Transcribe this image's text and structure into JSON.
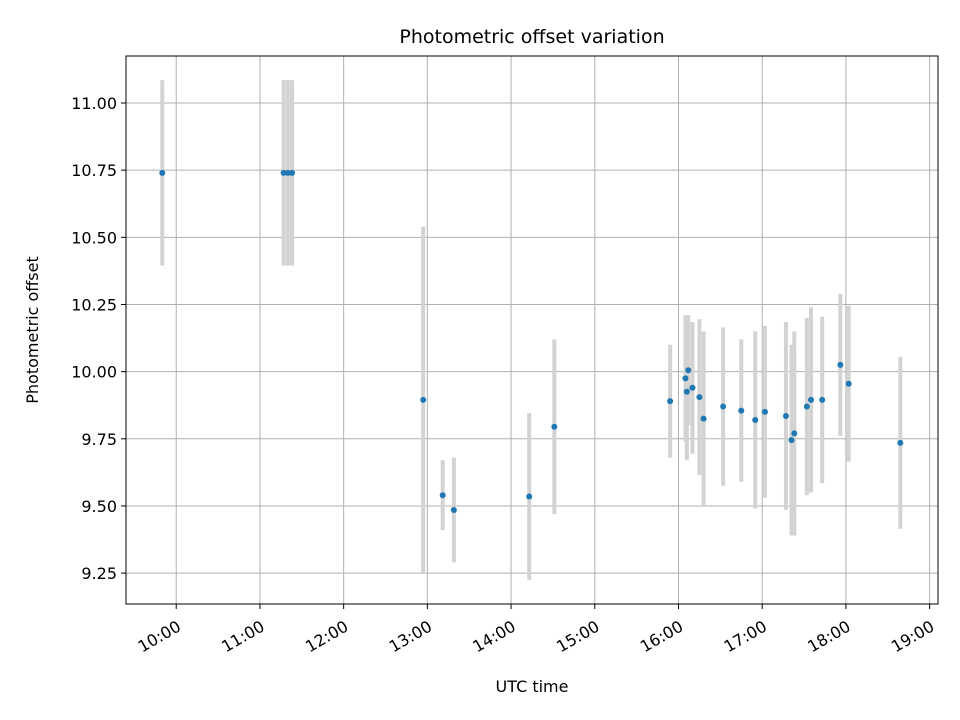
{
  "chart_data": {
    "type": "scatter",
    "title": "Photometric offset variation",
    "xlabel": "UTC time",
    "ylabel": "Photometric offset",
    "grid": true,
    "xlim_hours": [
      9.4,
      19.1
    ],
    "ylim": [
      9.135,
      11.175
    ],
    "x_tick_labels": [
      "10:00",
      "11:00",
      "12:00",
      "13:00",
      "14:00",
      "15:00",
      "16:00",
      "17:00",
      "18:00",
      "19:00"
    ],
    "y_tick_labels": [
      "9.25",
      "9.50",
      "9.75",
      "10.00",
      "10.25",
      "10.50",
      "10.75",
      "11.00"
    ],
    "colors": {
      "point": "#1f77b4",
      "errorbar": "#d3d3d3",
      "grid": "#b0b0b0"
    },
    "points": [
      {
        "x": "09:50",
        "y": 10.74,
        "err": 0.345
      },
      {
        "x": "11:17",
        "y": 10.74,
        "err": 0.345
      },
      {
        "x": "11:20",
        "y": 10.74,
        "err": 0.345
      },
      {
        "x": "11:23",
        "y": 10.74,
        "err": 0.345
      },
      {
        "x": "12:57",
        "y": 9.895,
        "err": 0.645
      },
      {
        "x": "13:11",
        "y": 9.54,
        "err": 0.13
      },
      {
        "x": "13:19",
        "y": 9.485,
        "err": 0.195
      },
      {
        "x": "14:13",
        "y": 9.535,
        "err": 0.31
      },
      {
        "x": "14:31",
        "y": 9.795,
        "err": 0.325
      },
      {
        "x": "15:54",
        "y": 9.89,
        "err": 0.21
      },
      {
        "x": "16:05",
        "y": 9.975,
        "err": 0.235
      },
      {
        "x": "16:06",
        "y": 9.925,
        "err": 0.255
      },
      {
        "x": "16:07",
        "y": 10.005,
        "err": 0.205
      },
      {
        "x": "16:10",
        "y": 9.94,
        "err": 0.245
      },
      {
        "x": "16:15",
        "y": 9.905,
        "err": 0.29
      },
      {
        "x": "16:18",
        "y": 9.825,
        "err": 0.325
      },
      {
        "x": "16:32",
        "y": 9.87,
        "err": 0.295
      },
      {
        "x": "16:45",
        "y": 9.855,
        "err": 0.265
      },
      {
        "x": "16:55",
        "y": 9.82,
        "err": 0.33
      },
      {
        "x": "17:02",
        "y": 9.85,
        "err": 0.32
      },
      {
        "x": "17:17",
        "y": 9.835,
        "err": 0.35
      },
      {
        "x": "17:21",
        "y": 9.745,
        "err": 0.355
      },
      {
        "x": "17:23",
        "y": 9.77,
        "err": 0.38
      },
      {
        "x": "17:32",
        "y": 9.87,
        "err": 0.33
      },
      {
        "x": "17:35",
        "y": 9.895,
        "err": 0.345
      },
      {
        "x": "17:43",
        "y": 9.895,
        "err": 0.31
      },
      {
        "x": "17:56",
        "y": 10.025,
        "err": 0.265
      },
      {
        "x": "18:02",
        "y": 9.955,
        "err": 0.29
      },
      {
        "x": "18:39",
        "y": 9.735,
        "err": 0.32
      }
    ]
  }
}
